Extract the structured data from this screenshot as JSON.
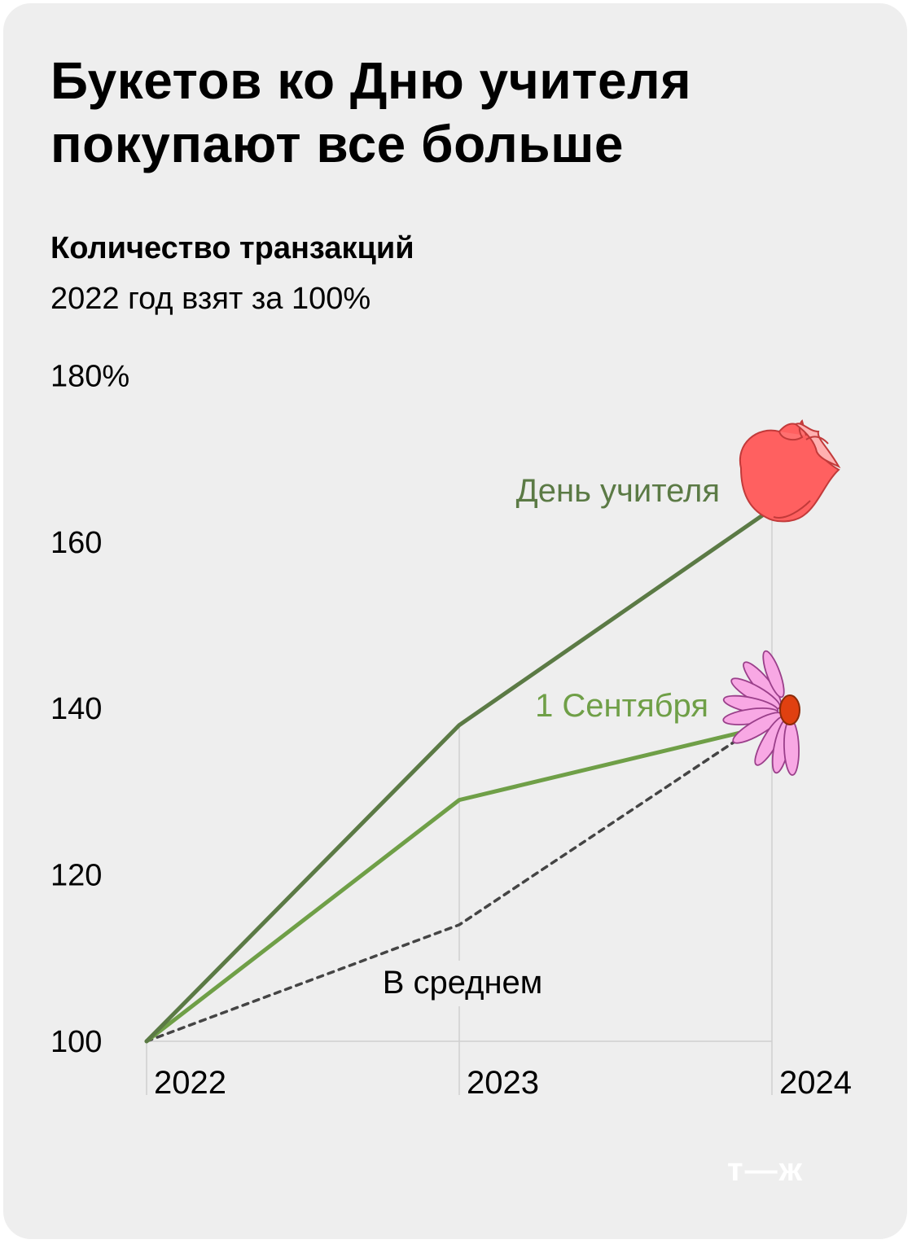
{
  "header": {
    "title_line1": "Букетов ко Дню учителя",
    "title_line2": "покупают все больше",
    "subtitle": "Количество транзакций",
    "note": "2022 год взят за 100%"
  },
  "brand": {
    "logo": "т—ж"
  },
  "colors": {
    "teachers_day": "#5b7a45",
    "sept_first": "#6f9f47",
    "average": "#444444",
    "grid": "#cfcfcf",
    "background": "#eeeeee"
  },
  "chart_data": {
    "type": "line",
    "title": "Букетов ко Дню учителя покупают все больше",
    "x": [
      "2022",
      "2023",
      "2024"
    ],
    "y_ticks": [
      "180%",
      "160",
      "140",
      "120",
      "100"
    ],
    "ylim": [
      100,
      180
    ],
    "grid": "vertical",
    "series": [
      {
        "name": "День учителя",
        "values": [
          100,
          138,
          164
        ],
        "style": "solid",
        "icon": "rose-icon"
      },
      {
        "name": "1 Сентября",
        "values": [
          100,
          129,
          138
        ],
        "style": "solid",
        "icon": "daisy-icon"
      },
      {
        "name": "В среднем",
        "values": [
          100,
          114,
          139
        ],
        "style": "dotted"
      }
    ]
  }
}
